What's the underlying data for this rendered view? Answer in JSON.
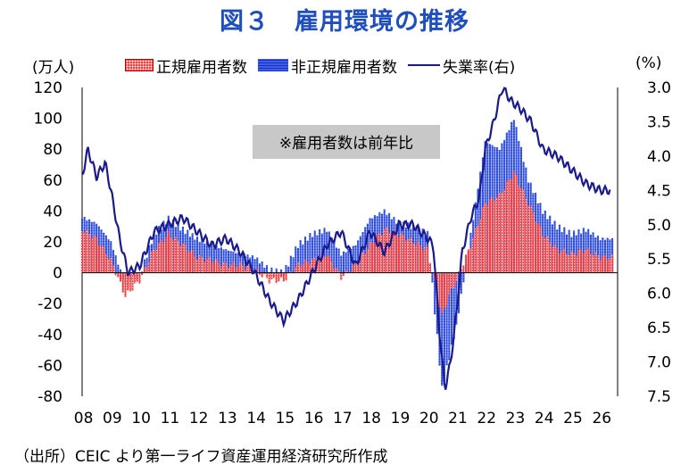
{
  "header": {
    "title": "図３　雇用環境の推移"
  },
  "units": {
    "left": "(万人)",
    "right": "(%)"
  },
  "note": "※雇用者数は前年比",
  "source": "（出所）CEIC より第一ライフ資産運用経済研究所作成",
  "colors": {
    "regular": "#f24040",
    "nonregular": "#3a5ef0",
    "unemployment": "#1a1a8a",
    "note_bg": "#c8c8c8"
  },
  "chart_data": {
    "type": "bar",
    "title": "図３　雇用環境の推移",
    "categories": [
      "08",
      "09",
      "10",
      "11",
      "12",
      "13",
      "14",
      "15",
      "16",
      "17",
      "18",
      "19",
      "20",
      "21",
      "22",
      "23",
      "24",
      "25",
      "26"
    ],
    "ylim": [
      -80,
      120
    ],
    "y2lim": [
      3.0,
      7.5
    ],
    "y2_inverted": true,
    "yticks": [
      "120",
      "100",
      "80",
      "60",
      "40",
      "20",
      "0",
      "-20",
      "-40",
      "-60",
      "-80"
    ],
    "y2ticks": [
      "3.0",
      "3.5",
      "4.0",
      "4.5",
      "5.0",
      "5.5",
      "6.0",
      "6.5",
      "7.0",
      "7.5"
    ],
    "legend": [
      "正規雇用者数",
      "非正規雇用者数",
      "失業率(右)"
    ],
    "series": [
      {
        "name": "正規雇用者数",
        "type": "bar",
        "x": [
          2008,
          2008.5,
          2009,
          2009.5,
          2010,
          2010.5,
          2011,
          2011.5,
          2012,
          2012.5,
          2013,
          2013.5,
          2014,
          2014.5,
          2015,
          2015.5,
          2016,
          2016.5,
          2017,
          2017.5,
          2018,
          2018.5,
          2019,
          2019.5,
          2020,
          2020.5,
          2020.75,
          2021,
          2021.5,
          2022,
          2022.5,
          2023,
          2023.5,
          2024,
          2024.5,
          2025,
          2025.5,
          2026
        ],
        "values": [
          28,
          22,
          8,
          -15,
          -5,
          15,
          25,
          18,
          10,
          8,
          5,
          5,
          2,
          -5,
          -5,
          5,
          8,
          12,
          -3,
          5,
          18,
          28,
          25,
          20,
          15,
          -28,
          -15,
          -5,
          18,
          45,
          50,
          65,
          45,
          25,
          15,
          12,
          15,
          10
        ]
      },
      {
        "name": "非正規雇用者数",
        "type": "bar",
        "x": [
          2008,
          2008.5,
          2009,
          2009.5,
          2010,
          2010.5,
          2011,
          2011.5,
          2012,
          2012.5,
          2013,
          2013.5,
          2014,
          2014.5,
          2015,
          2015.5,
          2016,
          2016.5,
          2017,
          2017.5,
          2018,
          2018.5,
          2019,
          2019.5,
          2020,
          2020.5,
          2020.75,
          2021,
          2021.5,
          2022,
          2022.5,
          2023,
          2023.5,
          2024,
          2024.5,
          2025,
          2025.5,
          2026
        ],
        "values": [
          36,
          32,
          20,
          -8,
          -2,
          25,
          35,
          28,
          22,
          18,
          15,
          12,
          10,
          2,
          0,
          18,
          25,
          28,
          12,
          18,
          35,
          40,
          32,
          30,
          25,
          -75,
          -55,
          -35,
          25,
          85,
          80,
          100,
          60,
          40,
          30,
          25,
          28,
          22
        ]
      },
      {
        "name": "失業率(右)",
        "type": "line",
        "x": [
          2008,
          2008.2,
          2008.5,
          2008.8,
          2009,
          2009.3,
          2009.6,
          2010,
          2010.5,
          2011,
          2011.5,
          2012,
          2012.5,
          2013,
          2013.5,
          2014,
          2014.5,
          2015,
          2015.5,
          2016,
          2016.5,
          2017,
          2017.5,
          2018,
          2018.5,
          2019,
          2019.5,
          2020,
          2020.2,
          2020.4,
          2020.6,
          2020.8,
          2021,
          2021.2,
          2021.5,
          2021.8,
          2022,
          2022.3,
          2022.6,
          2022.9,
          2023.2,
          2023.6,
          2024,
          2024.5,
          2025,
          2025.5,
          2026,
          2026.3
        ],
        "values": [
          4.3,
          3.9,
          4.3,
          4.1,
          4.5,
          5.2,
          5.7,
          5.6,
          5.1,
          5.0,
          4.9,
          5.1,
          5.3,
          5.2,
          5.4,
          5.7,
          6.1,
          6.4,
          6.1,
          5.7,
          5.3,
          5.1,
          5.6,
          5.1,
          5.4,
          5.0,
          5.0,
          5.2,
          5.3,
          6.5,
          7.4,
          7.0,
          6.3,
          5.4,
          4.9,
          4.6,
          3.9,
          3.5,
          3.0,
          3.2,
          3.3,
          3.5,
          3.9,
          4.0,
          4.2,
          4.4,
          4.5,
          4.5
        ]
      }
    ]
  }
}
